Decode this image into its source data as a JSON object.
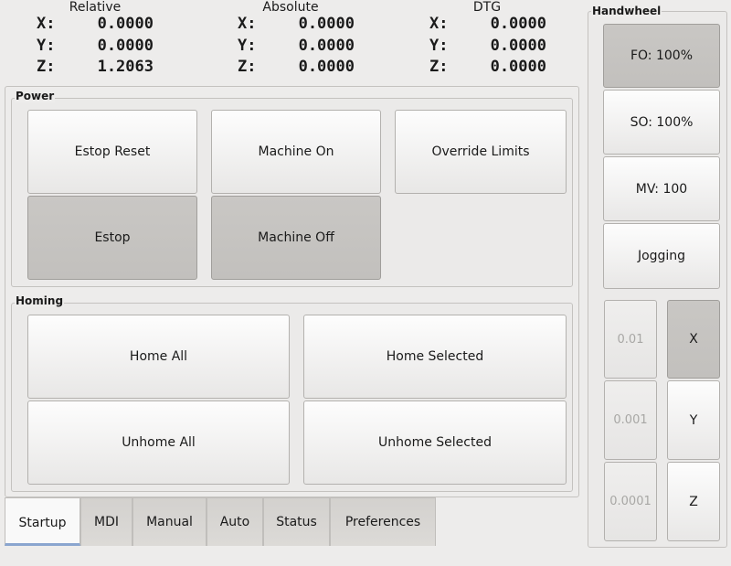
{
  "dro": {
    "relative": {
      "title": "Relative",
      "x_label": "X:",
      "y_label": "Y:",
      "z_label": "Z:",
      "x": "0.0000",
      "y": "0.0000",
      "z": "1.2063"
    },
    "absolute": {
      "title": "Absolute",
      "x_label": "X:",
      "y_label": "Y:",
      "z_label": "Z:",
      "x": "0.0000",
      "y": "0.0000",
      "z": "0.0000"
    },
    "dtg": {
      "title": "DTG",
      "x_label": "X:",
      "y_label": "Y:",
      "z_label": "Z:",
      "x": "0.0000",
      "y": "0.0000",
      "z": "0.0000"
    }
  },
  "power": {
    "title": "Power",
    "estop_reset": "Estop Reset",
    "machine_on": "Machine On",
    "override_limits": "Override Limits",
    "estop": "Estop",
    "machine_off": "Machine Off"
  },
  "homing": {
    "title": "Homing",
    "home_all": "Home All",
    "home_selected": "Home Selected",
    "unhome_all": "Unhome All",
    "unhome_selected": "Unhome Selected"
  },
  "tabs": [
    {
      "label": "Startup",
      "active": true
    },
    {
      "label": "MDI"
    },
    {
      "label": "Manual"
    },
    {
      "label": "Auto"
    },
    {
      "label": "Status"
    },
    {
      "label": "Preferences"
    }
  ],
  "handwheel": {
    "title": "Handwheel",
    "fo": "FO: 100%",
    "so": "SO: 100%",
    "mv": "MV: 100",
    "jogging": "Jogging",
    "increments": [
      "0.01",
      "0.001",
      "0.0001"
    ],
    "axes": [
      "X",
      "Y",
      "Z"
    ],
    "selected_axis": "X"
  }
}
